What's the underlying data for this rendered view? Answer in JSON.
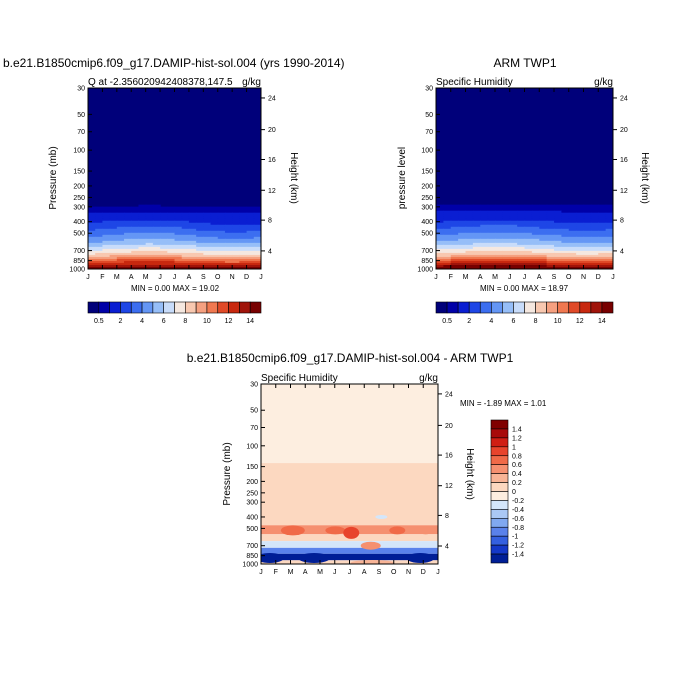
{
  "chart_data": [
    {
      "type": "heatmap",
      "title": "b.e21.B1850cmip6.f09_g17.DAMIP-hist-sol.004 (yrs 1990-2014)",
      "left_label": "Q at -2.356020942408378,147.5",
      "right_label": "g/kg",
      "ylabel": "Pressure (mb)",
      "ylabel_right": "Height (km)",
      "x_ticks": [
        "J",
        "F",
        "M",
        "A",
        "M",
        "J",
        "J",
        "A",
        "S",
        "O",
        "N",
        "D",
        "J"
      ],
      "y_ticks": [
        "30",
        "50",
        "70",
        "100",
        "150",
        "200",
        "250",
        "300",
        "400",
        "500",
        "700",
        "850",
        "1000"
      ],
      "y_ticks_right": [
        "24",
        "20",
        "16",
        "12",
        "8",
        "4"
      ],
      "stats": "MIN =   0.00 MAX =  19.02",
      "colorbar_labels": [
        "0.5",
        "2",
        "4",
        "6",
        "8",
        "10",
        "12",
        "14"
      ],
      "colormap": [
        "#00007a",
        "#0000a8",
        "#0a1ed2",
        "#1e46e6",
        "#3c6ef0",
        "#6496f5",
        "#96bef8",
        "#c8dcfa",
        "#f5e8e0",
        "#f8c8b0",
        "#f5a080",
        "#f07850",
        "#e04a28",
        "#c8280f",
        "#a0140a",
        "#780000"
      ],
      "ylim": [
        1000,
        30
      ],
      "profile": [
        {
          "p": 1000,
          "q": 15.5
        },
        {
          "p": 925,
          "q": 13.0
        },
        {
          "p": 850,
          "q": 11.0
        },
        {
          "p": 775,
          "q": 8.8
        },
        {
          "p": 700,
          "q": 7.2
        },
        {
          "p": 600,
          "q": 5.2
        },
        {
          "p": 500,
          "q": 3.6
        },
        {
          "p": 400,
          "q": 2.0
        },
        {
          "p": 350,
          "q": 1.2
        },
        {
          "p": 300,
          "q": 0.5
        },
        {
          "p": 250,
          "q": 0.2
        },
        {
          "p": 30,
          "q": 0.0
        }
      ],
      "seasonal_shift": 0.6
    },
    {
      "type": "heatmap",
      "title": "ARM TWP1",
      "left_label": "Specific Humidity",
      "right_label": "g/kg",
      "ylabel": "pressure level",
      "ylabel_right": "Height (km)",
      "x_ticks": [
        "J",
        "F",
        "M",
        "A",
        "M",
        "J",
        "J",
        "A",
        "S",
        "O",
        "N",
        "D",
        "J"
      ],
      "y_ticks": [
        "30",
        "50",
        "70",
        "100",
        "150",
        "200",
        "250",
        "300",
        "400",
        "500",
        "700",
        "850",
        "1000"
      ],
      "y_ticks_right": [
        "24",
        "20",
        "16",
        "12",
        "8",
        "4"
      ],
      "stats": "MIN =   0.00 MAX =  18.97",
      "colorbar_labels": [
        "0.5",
        "2",
        "4",
        "6",
        "8",
        "10",
        "12",
        "14"
      ],
      "colormap": [
        "#00007a",
        "#0000a8",
        "#0a1ed2",
        "#1e46e6",
        "#3c6ef0",
        "#6496f5",
        "#96bef8",
        "#c8dcfa",
        "#f5e8e0",
        "#f8c8b0",
        "#f5a080",
        "#f07850",
        "#e04a28",
        "#c8280f",
        "#a0140a",
        "#780000"
      ],
      "ylim": [
        1000,
        30
      ],
      "profile": [
        {
          "p": 1000,
          "q": 15.8
        },
        {
          "p": 925,
          "q": 13.5
        },
        {
          "p": 850,
          "q": 11.4
        },
        {
          "p": 775,
          "q": 9.0
        },
        {
          "p": 700,
          "q": 7.4
        },
        {
          "p": 600,
          "q": 5.4
        },
        {
          "p": 500,
          "q": 3.8
        },
        {
          "p": 400,
          "q": 2.1
        },
        {
          "p": 350,
          "q": 1.3
        },
        {
          "p": 300,
          "q": 0.6
        },
        {
          "p": 250,
          "q": 0.2
        },
        {
          "p": 30,
          "q": 0.0
        }
      ],
      "seasonal_shift": 0.5
    },
    {
      "type": "heatmap",
      "title": "b.e21.B1850cmip6.f09_g17.DAMIP-hist-sol.004 - ARM TWP1",
      "left_label": "Specific Humidity",
      "right_label": "g/kg",
      "ylabel": "Pressure (mb)",
      "ylabel_right": "Height (km)",
      "x_ticks": [
        "J",
        "F",
        "M",
        "A",
        "M",
        "J",
        "J",
        "A",
        "S",
        "O",
        "N",
        "D",
        "J"
      ],
      "y_ticks": [
        "30",
        "50",
        "70",
        "100",
        "150",
        "200",
        "250",
        "300",
        "400",
        "500",
        "700",
        "850",
        "1000"
      ],
      "y_ticks_right": [
        "24",
        "20",
        "16",
        "12",
        "8",
        "4"
      ],
      "stats": "MIN =  -1.89 MAX =   1.01",
      "colorbar_labels": [
        "1.4",
        "1.2",
        "1",
        "0.8",
        "0.6",
        "0.4",
        "0.2",
        "0",
        "-0.2",
        "-0.4",
        "-0.6",
        "-0.8",
        "-1",
        "-1.2",
        "-1.4"
      ],
      "colormap": [
        "#800000",
        "#a80a0a",
        "#d01e14",
        "#e8442c",
        "#f06a48",
        "#f59070",
        "#f8b496",
        "#fcd8c0",
        "#fdeee0",
        "#d4e6fa",
        "#aac8f5",
        "#80a8f0",
        "#5a82eb",
        "#3460e0",
        "#1438c8",
        "#001e96"
      ],
      "ylim": [
        1000,
        30
      ],
      "bands": [
        {
          "p_top": 30,
          "p_bot": 140,
          "value": -0.1
        },
        {
          "p_top": 140,
          "p_bot": 470,
          "value": 0.1
        },
        {
          "p_top": 470,
          "p_bot": 560,
          "value": 0.5
        },
        {
          "p_top": 560,
          "p_bot": 640,
          "value": 0.1
        },
        {
          "p_top": 640,
          "p_bot": 730,
          "value": -0.4
        },
        {
          "p_top": 730,
          "p_bot": 820,
          "value": -1.0
        },
        {
          "p_top": 820,
          "p_bot": 930,
          "value": -1.5
        },
        {
          "p_top": 930,
          "p_bot": 1000,
          "value": 0.0
        }
      ]
    }
  ]
}
